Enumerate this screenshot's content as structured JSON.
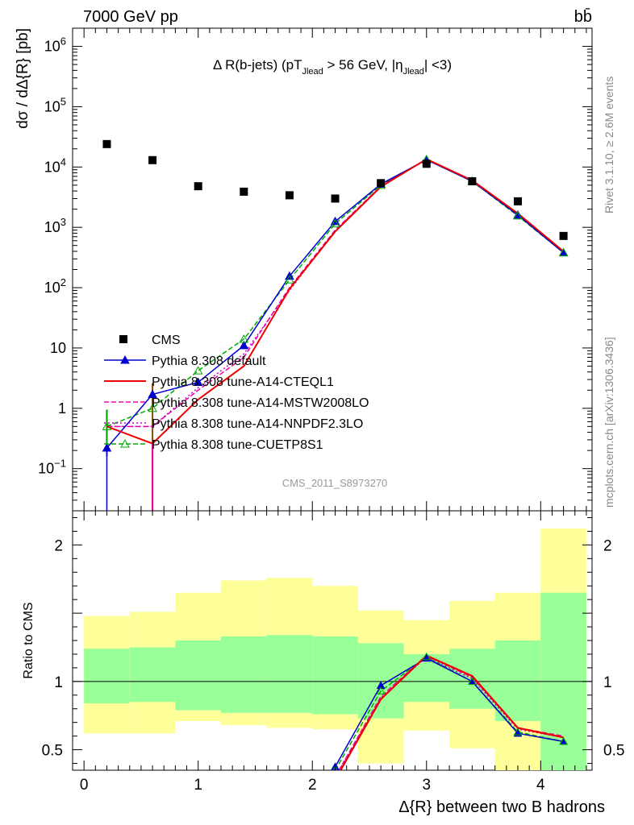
{
  "header": {
    "energy_label": "7000 GeV pp",
    "process_label": "bb̄"
  },
  "side_labels": {
    "rivet": "Rivet 3.1.10, ≥ 2.6M events",
    "mcplots": "mcplots.cern.ch [arXiv:1306.3436]"
  },
  "chart_data": [
    {
      "type": "scatter",
      "title": "Δ R(b-jets) (pT_Jlead >  56 GeV, |η_Jlead| <3)",
      "ylabel": "dσ / dΔ{R} [pb]",
      "watermark": "CMS_2011_S8973270",
      "yscale": "log",
      "ylim": [
        0.02,
        2000000
      ],
      "xlim": [
        -0.1,
        4.45
      ],
      "y_tick_labels": [
        "10^-1",
        "1",
        "10",
        "10^2",
        "10^3",
        "10^4",
        "10^5",
        "10^6"
      ],
      "x": [
        0.2,
        0.6,
        1.0,
        1.4,
        1.8,
        2.2,
        2.6,
        3.0,
        3.4,
        3.8,
        4.2
      ],
      "series": [
        {
          "name": "CMS",
          "color": "#000000",
          "marker": "square",
          "line": "none",
          "values": [
            24000,
            13000,
            4800,
            3900,
            3400,
            3000,
            5400,
            11300,
            5800,
            2700,
            720
          ]
        },
        {
          "name": "Pythia 8.308 default",
          "color": "#0000cc",
          "marker": "triangle-filled",
          "line": "solid",
          "values": [
            0.22,
            1.7,
            2.7,
            11,
            155,
            1250,
            5200,
            13200,
            5800,
            1600,
            380
          ]
        },
        {
          "name": "Pythia 8.308 tune-A14-CTEQL1",
          "color": "#ee0000",
          "marker": "none",
          "line": "solid",
          "values": [
            0.5,
            0.26,
            1.4,
            5,
            95,
            850,
            4700,
            13500,
            6000,
            1700,
            400
          ]
        },
        {
          "name": "Pythia 8.308 tune-A14-MSTW2008LO",
          "color": "#ee00aa",
          "marker": "none",
          "line": "dashed",
          "values": [
            0.5,
            0.5,
            2.0,
            7,
            100,
            900,
            4800,
            13400,
            5900,
            1650,
            390
          ]
        },
        {
          "name": "Pythia 8.308 tune-A14-NNPDF2.3LO",
          "color": "#cc00cc",
          "marker": "none",
          "line": "dotted",
          "values": [
            0.5,
            0.5,
            2.2,
            8,
            90,
            880,
            4800,
            13300,
            5900,
            1650,
            390
          ]
        },
        {
          "name": "Pythia 8.308 tune-CUETP8S1",
          "color": "#00aa00",
          "marker": "triangle-open",
          "line": "dashed",
          "values": [
            0.5,
            1.0,
            4.2,
            14,
            135,
            1150,
            5000,
            13300,
            5800,
            1550,
            380
          ]
        }
      ]
    },
    {
      "type": "line",
      "ylabel": "Ratio to CMS",
      "xlabel": "Δ{R} between two B hadrons",
      "ylim": [
        0.35,
        2.25
      ],
      "xlim": [
        -0.1,
        4.45
      ],
      "x_tick_labels": [
        "0",
        "1",
        "2",
        "3",
        "4"
      ],
      "y_tick_labels": [
        "0.5",
        "1",
        "2"
      ],
      "bins": [
        [
          0.0,
          0.4
        ],
        [
          0.4,
          0.8
        ],
        [
          0.8,
          1.2
        ],
        [
          1.2,
          1.6
        ],
        [
          1.6,
          2.0
        ],
        [
          2.0,
          2.4
        ],
        [
          2.4,
          2.8
        ],
        [
          2.8,
          3.2
        ],
        [
          3.2,
          3.6
        ],
        [
          3.6,
          4.0
        ],
        [
          4.0,
          4.4
        ]
      ],
      "band_inner": [
        [
          0.84,
          1.24
        ],
        [
          0.85,
          1.25
        ],
        [
          0.79,
          1.3
        ],
        [
          0.77,
          1.33
        ],
        [
          0.77,
          1.34
        ],
        [
          0.76,
          1.33
        ],
        [
          0.73,
          1.28
        ],
        [
          0.85,
          1.2
        ],
        [
          0.8,
          1.24
        ],
        [
          0.71,
          1.3
        ],
        [
          0.35,
          1.65
        ]
      ],
      "band_outer": [
        [
          0.62,
          1.48
        ],
        [
          0.62,
          1.51
        ],
        [
          0.71,
          1.65
        ],
        [
          0.68,
          1.74
        ],
        [
          0.66,
          1.76
        ],
        [
          0.65,
          1.7
        ],
        [
          0.4,
          1.52
        ],
        [
          0.64,
          1.45
        ],
        [
          0.51,
          1.59
        ],
        [
          0.35,
          1.65
        ],
        [
          0.35,
          2.12
        ]
      ],
      "x": [
        0.2,
        0.6,
        1.0,
        1.4,
        1.8,
        2.2,
        2.6,
        3.0,
        3.4,
        3.8,
        4.2
      ],
      "series": [
        {
          "name": "Pythia 8.308 default",
          "color": "#0000cc",
          "line": "solid",
          "values": [
            null,
            null,
            null,
            null,
            null,
            0.375,
            0.97,
            1.17,
            1.0,
            0.62,
            0.56
          ]
        },
        {
          "name": "Pythia 8.308 tune-A14-CTEQL1",
          "color": "#ee0000",
          "line": "solid",
          "values": [
            null,
            null,
            null,
            null,
            null,
            0.28,
            0.87,
            1.19,
            1.04,
            0.66,
            0.59
          ]
        },
        {
          "name": "Pythia 8.308 tune-A14-MSTW2008LO",
          "color": "#ee00aa",
          "line": "dashed",
          "values": [
            null,
            null,
            null,
            null,
            null,
            0.3,
            0.89,
            1.19,
            1.03,
            0.66,
            0.6
          ]
        },
        {
          "name": "Pythia 8.308 tune-A14-NNPDF2.3LO",
          "color": "#cc00cc",
          "line": "dotted",
          "values": [
            null,
            null,
            null,
            null,
            null,
            0.3,
            0.88,
            1.18,
            1.02,
            0.65,
            0.59
          ]
        },
        {
          "name": "Pythia 8.308 tune-CUETP8S1",
          "color": "#00aa00",
          "line": "dashed",
          "values": [
            null,
            null,
            null,
            null,
            null,
            0.35,
            0.93,
            1.18,
            1.0,
            0.63,
            0.56
          ]
        }
      ]
    }
  ]
}
